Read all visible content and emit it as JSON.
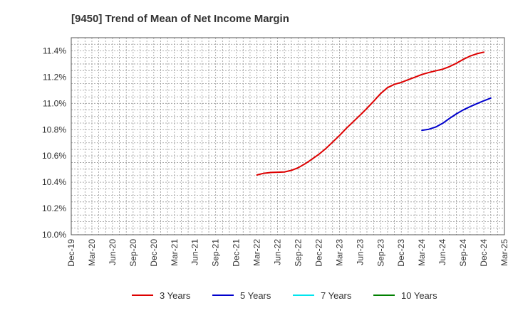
{
  "chart_data": {
    "type": "line",
    "title": "[9450]  Trend of Mean of Net Income Margin",
    "xlabel": "",
    "ylabel": "",
    "x_ticks": [
      "Dec-19",
      "Mar-20",
      "Jun-20",
      "Sep-20",
      "Dec-20",
      "Mar-21",
      "Jun-21",
      "Sep-21",
      "Dec-21",
      "Mar-22",
      "Jun-22",
      "Sep-22",
      "Dec-22",
      "Mar-23",
      "Jun-23",
      "Sep-23",
      "Dec-23",
      "Mar-24",
      "Jun-24",
      "Sep-24",
      "Dec-24",
      "Mar-25"
    ],
    "y_ticks": [
      "10.0%",
      "10.2%",
      "10.4%",
      "10.6%",
      "10.8%",
      "11.0%",
      "11.2%",
      "11.4%"
    ],
    "ylim": [
      10.0,
      11.5
    ],
    "grid": true,
    "legend_position": "bottom",
    "series": [
      {
        "name": "3 Years",
        "color": "#dd0000",
        "points": [
          [
            "Mar-22",
            10.455
          ],
          [
            "Apr-22",
            10.468
          ],
          [
            "May-22",
            10.474
          ],
          [
            "Jun-22",
            10.476
          ],
          [
            "Jul-22",
            10.478
          ],
          [
            "Aug-22",
            10.49
          ],
          [
            "Sep-22",
            10.51
          ],
          [
            "Oct-22",
            10.54
          ],
          [
            "Nov-22",
            10.575
          ],
          [
            "Dec-22",
            10.612
          ],
          [
            "Jan-23",
            10.655
          ],
          [
            "Feb-23",
            10.705
          ],
          [
            "Mar-23",
            10.755
          ],
          [
            "Apr-23",
            10.81
          ],
          [
            "May-23",
            10.86
          ],
          [
            "Jun-23",
            10.91
          ],
          [
            "Jul-23",
            10.962
          ],
          [
            "Aug-23",
            11.018
          ],
          [
            "Sep-23",
            11.075
          ],
          [
            "Oct-23",
            11.12
          ],
          [
            "Nov-23",
            11.145
          ],
          [
            "Dec-23",
            11.16
          ],
          [
            "Jan-24",
            11.18
          ],
          [
            "Feb-24",
            11.2
          ],
          [
            "Mar-24",
            11.22
          ],
          [
            "Apr-24",
            11.235
          ],
          [
            "May-24",
            11.248
          ],
          [
            "Jun-24",
            11.26
          ],
          [
            "Jul-24",
            11.28
          ],
          [
            "Aug-24",
            11.305
          ],
          [
            "Sep-24",
            11.335
          ],
          [
            "Oct-24",
            11.36
          ],
          [
            "Nov-24",
            11.378
          ],
          [
            "Dec-24",
            11.39
          ]
        ]
      },
      {
        "name": "5 Years",
        "color": "#0000cc",
        "points": [
          [
            "Mar-24",
            10.795
          ],
          [
            "Apr-24",
            10.803
          ],
          [
            "May-24",
            10.82
          ],
          [
            "Jun-24",
            10.848
          ],
          [
            "Jul-24",
            10.885
          ],
          [
            "Aug-24",
            10.92
          ],
          [
            "Sep-24",
            10.95
          ],
          [
            "Oct-24",
            10.975
          ],
          [
            "Nov-24",
            10.998
          ],
          [
            "Dec-24",
            11.02
          ],
          [
            "Jan-25",
            11.04
          ]
        ]
      },
      {
        "name": "7 Years",
        "color": "#00e5ee",
        "points": []
      },
      {
        "name": "10 Years",
        "color": "#008000",
        "points": []
      }
    ]
  }
}
